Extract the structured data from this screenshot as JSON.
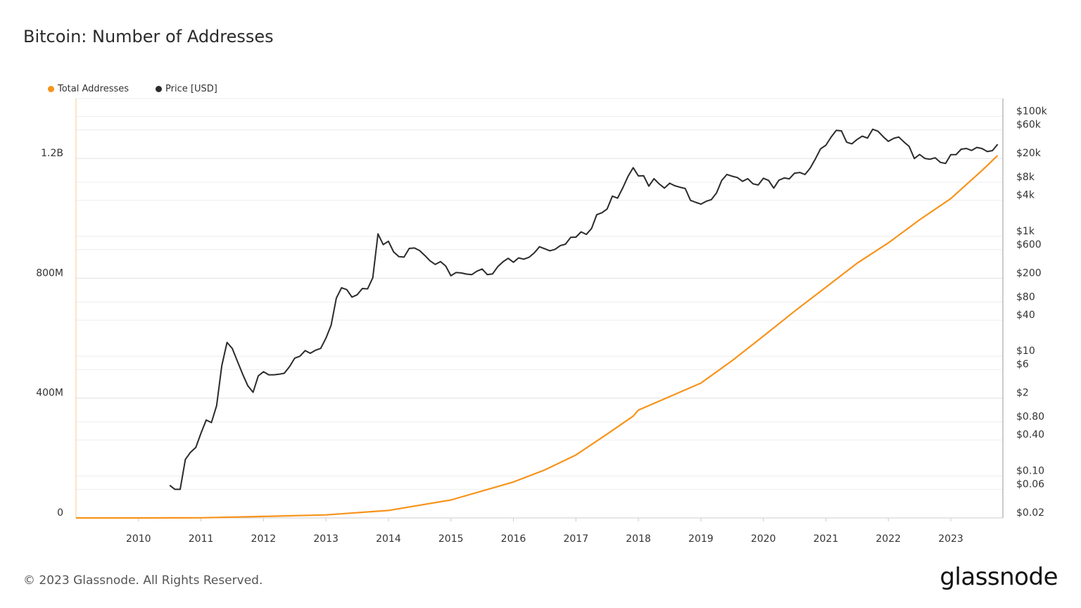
{
  "chart_data": {
    "type": "line",
    "title": "Bitcoin: Number of Addresses",
    "legend_placement": "top-left",
    "grid": true,
    "x_ticks": [
      "2010",
      "2011",
      "2012",
      "2013",
      "2014",
      "2015",
      "2016",
      "2017",
      "2018",
      "2019",
      "2020",
      "2021",
      "2022",
      "2023"
    ],
    "xlim": [
      "2009-01",
      "2023-10"
    ],
    "left_axis": {
      "ticks": [
        "0",
        "400M",
        "800M",
        "1.2B"
      ],
      "tick_values": [
        0,
        400000000,
        800000000,
        1200000000
      ],
      "ylim": [
        0,
        1400000000
      ],
      "scale": "linear"
    },
    "right_axis": {
      "ticks": [
        "$0.02",
        "$0.06",
        "$0.10",
        "$0.40",
        "$0.80",
        "$2",
        "$6",
        "$10",
        "$40",
        "$80",
        "$200",
        "$600",
        "$1k",
        "$4k",
        "$8k",
        "$20k",
        "$60k",
        "$100k"
      ],
      "tick_values": [
        0.02,
        0.06,
        0.1,
        0.4,
        0.8,
        2,
        6,
        10,
        40,
        80,
        200,
        600,
        1000,
        4000,
        8000,
        20000,
        60000,
        100000
      ],
      "ylim": [
        0.02,
        200000
      ],
      "scale": "log"
    },
    "series": [
      {
        "name": "Total Addresses",
        "axis": "left",
        "color": "#f7931a",
        "x": [
          "2009-01",
          "2010-01",
          "2011-01",
          "2012-01",
          "2013-01",
          "2014-01",
          "2015-01",
          "2016-01",
          "2016-07",
          "2017-01",
          "2017-07",
          "2017-12",
          "2018-01",
          "2018-07",
          "2019-01",
          "2019-07",
          "2020-01",
          "2020-07",
          "2021-01",
          "2021-07",
          "2022-01",
          "2022-07",
          "2023-01",
          "2023-07",
          "2023-10"
        ],
        "values": [
          0,
          100000,
          500000,
          5000000,
          10000000,
          25000000,
          60000000,
          120000000,
          160000000,
          210000000,
          280000000,
          340000000,
          360000000,
          405000000,
          450000000,
          525000000,
          607000000,
          690000000,
          770000000,
          850000000,
          918000000,
          995000000,
          1066000000,
          1160000000,
          1210000000
        ]
      },
      {
        "name": "Price [USD]",
        "axis": "right",
        "color": "#2b2b2b",
        "x": [
          "2010-07",
          "2010-08",
          "2010-09",
          "2010-10",
          "2010-11",
          "2010-12",
          "2011-01",
          "2011-02",
          "2011-03",
          "2011-04",
          "2011-05",
          "2011-06",
          "2011-07",
          "2011-08",
          "2011-09",
          "2011-10",
          "2011-11",
          "2011-12",
          "2012-01",
          "2012-02",
          "2012-03",
          "2012-04",
          "2012-05",
          "2012-06",
          "2012-07",
          "2012-08",
          "2012-09",
          "2012-10",
          "2012-11",
          "2012-12",
          "2013-01",
          "2013-02",
          "2013-03",
          "2013-04",
          "2013-05",
          "2013-06",
          "2013-07",
          "2013-08",
          "2013-09",
          "2013-10",
          "2013-11",
          "2013-12",
          "2014-01",
          "2014-02",
          "2014-03",
          "2014-04",
          "2014-05",
          "2014-06",
          "2014-07",
          "2014-08",
          "2014-09",
          "2014-10",
          "2014-11",
          "2014-12",
          "2015-01",
          "2015-02",
          "2015-03",
          "2015-04",
          "2015-05",
          "2015-06",
          "2015-07",
          "2015-08",
          "2015-09",
          "2015-10",
          "2015-11",
          "2015-12",
          "2016-01",
          "2016-02",
          "2016-03",
          "2016-04",
          "2016-05",
          "2016-06",
          "2016-07",
          "2016-08",
          "2016-09",
          "2016-10",
          "2016-11",
          "2016-12",
          "2017-01",
          "2017-02",
          "2017-03",
          "2017-04",
          "2017-05",
          "2017-06",
          "2017-07",
          "2017-08",
          "2017-09",
          "2017-10",
          "2017-11",
          "2017-12",
          "2018-01",
          "2018-02",
          "2018-03",
          "2018-04",
          "2018-05",
          "2018-06",
          "2018-07",
          "2018-08",
          "2018-09",
          "2018-10",
          "2018-11",
          "2018-12",
          "2019-01",
          "2019-02",
          "2019-03",
          "2019-04",
          "2019-05",
          "2019-06",
          "2019-07",
          "2019-08",
          "2019-09",
          "2019-10",
          "2019-11",
          "2019-12",
          "2020-01",
          "2020-02",
          "2020-03",
          "2020-04",
          "2020-05",
          "2020-06",
          "2020-07",
          "2020-08",
          "2020-09",
          "2020-10",
          "2020-11",
          "2020-12",
          "2021-01",
          "2021-02",
          "2021-03",
          "2021-04",
          "2021-05",
          "2021-06",
          "2021-07",
          "2021-08",
          "2021-09",
          "2021-10",
          "2021-11",
          "2021-12",
          "2022-01",
          "2022-02",
          "2022-03",
          "2022-04",
          "2022-05",
          "2022-06",
          "2022-07",
          "2022-08",
          "2022-09",
          "2022-10",
          "2022-11",
          "2022-12",
          "2023-01",
          "2023-02",
          "2023-03",
          "2023-04",
          "2023-05",
          "2023-06",
          "2023-07",
          "2023-08",
          "2023-09",
          "2023-10"
        ],
        "values": [
          0.07,
          0.06,
          0.06,
          0.19,
          0.25,
          0.3,
          0.52,
          0.86,
          0.78,
          1.5,
          7,
          17,
          13.5,
          8.2,
          5,
          3.2,
          2.5,
          4.7,
          5.5,
          4.9,
          4.9,
          5,
          5.2,
          6.7,
          9.3,
          10,
          12.4,
          11.2,
          12.6,
          13.5,
          20,
          33,
          93,
          139,
          129,
          97,
          106,
          135,
          133,
          204,
          1100,
          730,
          830,
          550,
          460,
          450,
          630,
          640,
          580,
          480,
          390,
          340,
          380,
          320,
          220,
          250,
          245,
          235,
          230,
          263,
          285,
          230,
          237,
          313,
          377,
          430,
          370,
          437,
          416,
          448,
          530,
          670,
          624,
          575,
          608,
          700,
          742,
          963,
          970,
          1190,
          1080,
          1350,
          2300,
          2480,
          2870,
          4700,
          4340,
          6450,
          10000,
          14000,
          10200,
          10300,
          6900,
          9200,
          7500,
          6400,
          7700,
          7000,
          6600,
          6300,
          4000,
          3700,
          3450,
          3850,
          4100,
          5300,
          8600,
          10800,
          10100,
          9600,
          8300,
          9200,
          7550,
          7200,
          9350,
          8600,
          6400,
          8650,
          9450,
          9140,
          11350,
          11650,
          10780,
          13800,
          19700,
          29000,
          33100,
          45200,
          58800,
          57700,
          37300,
          35000,
          41500,
          47100,
          43800,
          61300,
          57000,
          46300,
          38500,
          43200,
          45500,
          37700,
          31800,
          19900,
          23300,
          20000,
          19400,
          20500,
          17200,
          16500,
          23100,
          23100,
          28500,
          29300,
          27200,
          30500,
          29200,
          26000,
          27000,
          34500
        ]
      }
    ]
  },
  "footer": {
    "copyright": "© 2023 Glassnode. All Rights Reserved.",
    "logo_text": "glassnode"
  }
}
